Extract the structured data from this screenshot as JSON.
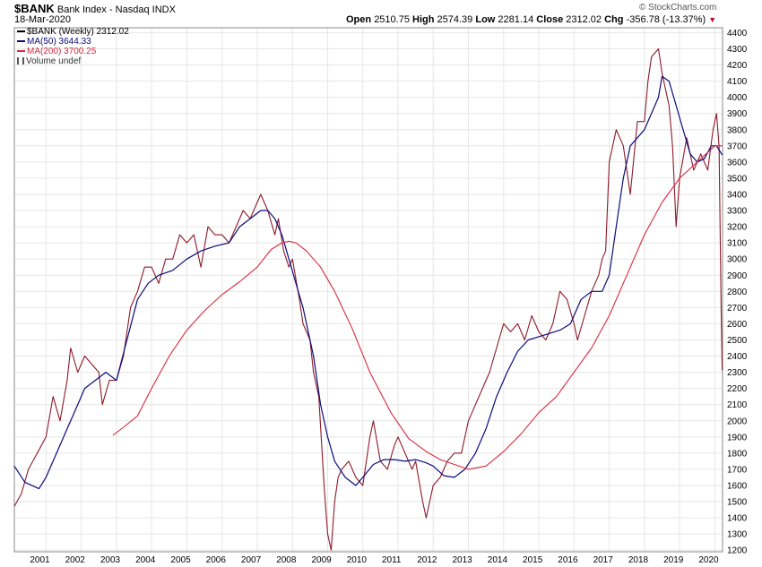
{
  "header": {
    "symbol": "$BANK",
    "name": "Bank Index - Nasdaq",
    "exchange": "INDX",
    "date": "18-Mar-2020",
    "brand": "© StockCharts.com",
    "open_label": "Open",
    "open": "2510.75",
    "high_label": "High",
    "high": "2574.39",
    "low_label": "Low",
    "low": "2281.14",
    "close_label": "Close",
    "close": "2312.02",
    "chg_label": "Chg",
    "chg": "-356.78 (-13.37%)",
    "chg_marker": "▼"
  },
  "legend": {
    "price": "$BANK (Weekly) 2312.02",
    "ma50": "MA(50) 3644.33",
    "ma200": "MA(200) 3700.25",
    "volume": "Volume undef"
  },
  "colors": {
    "price": "#8b1a2a",
    "ma50": "#0b0b7a",
    "ma200": "#d8283f",
    "grid": "#e6e6e6"
  },
  "chart_data": {
    "type": "line",
    "title": "$BANK Bank Index - Nasdaq INDX",
    "xlabel": "",
    "ylabel": "",
    "xlim": [
      2000.1,
      2020.22
    ],
    "ylim": [
      1190,
      4430
    ],
    "x_ticks": [
      2001,
      2002,
      2003,
      2004,
      2005,
      2006,
      2007,
      2008,
      2009,
      2010,
      2011,
      2012,
      2013,
      2014,
      2015,
      2016,
      2017,
      2018,
      2019,
      2020
    ],
    "x_tick_labels": [
      "2001",
      "2002",
      "2003",
      "2004",
      "2005",
      "2006",
      "2007",
      "2008",
      "2009",
      "2010",
      "2011",
      "2012",
      "2013",
      "2014",
      "2015",
      "2016",
      "2017",
      "2018",
      "2019",
      "2020"
    ],
    "y_ticks": [
      1200,
      1300,
      1400,
      1500,
      1600,
      1700,
      1800,
      1900,
      2000,
      2100,
      2200,
      2300,
      2400,
      2500,
      2600,
      2700,
      2800,
      2900,
      3000,
      3100,
      3200,
      3300,
      3400,
      3500,
      3600,
      3700,
      3800,
      3900,
      4000,
      4100,
      4200,
      4300,
      4400
    ],
    "grid": true,
    "legend_position": "top-left",
    "series": [
      {
        "name": "$BANK (Weekly)",
        "style": "price",
        "x": [
          2000.1,
          2000.3,
          2000.5,
          2000.8,
          2001.0,
          2001.2,
          2001.4,
          2001.6,
          2001.7,
          2001.9,
          2002.1,
          2002.3,
          2002.5,
          2002.6,
          2002.8,
          2003.0,
          2003.2,
          2003.4,
          2003.6,
          2003.8,
          2004.0,
          2004.2,
          2004.4,
          2004.6,
          2004.8,
          2005.0,
          2005.2,
          2005.4,
          2005.6,
          2005.8,
          2006.0,
          2006.2,
          2006.4,
          2006.6,
          2006.8,
          2007.0,
          2007.1,
          2007.3,
          2007.5,
          2007.6,
          2007.75,
          2007.9,
          2008.0,
          2008.2,
          2008.3,
          2008.5,
          2008.6,
          2008.75,
          2008.9,
          2009.0,
          2009.1,
          2009.2,
          2009.3,
          2009.4,
          2009.6,
          2009.8,
          2010.0,
          2010.2,
          2010.3,
          2010.5,
          2010.7,
          2010.9,
          2011.0,
          2011.2,
          2011.4,
          2011.5,
          2011.7,
          2011.8,
          2012.0,
          2012.2,
          2012.4,
          2012.6,
          2012.8,
          2013.0,
          2013.2,
          2013.4,
          2013.6,
          2013.8,
          2014.0,
          2014.2,
          2014.4,
          2014.6,
          2014.8,
          2015.0,
          2015.2,
          2015.4,
          2015.6,
          2015.8,
          2016.0,
          2016.1,
          2016.3,
          2016.5,
          2016.7,
          2016.8,
          2016.9,
          2017.0,
          2017.2,
          2017.4,
          2017.6,
          2017.8,
          2018.0,
          2018.1,
          2018.2,
          2018.4,
          2018.5,
          2018.7,
          2018.8,
          2018.9,
          2019.0,
          2019.2,
          2019.4,
          2019.6,
          2019.8,
          2019.95,
          2020.05,
          2020.12,
          2020.18,
          2020.21
        ],
        "y": [
          1470,
          1550,
          1700,
          1820,
          1900,
          2150,
          2000,
          2250,
          2450,
          2300,
          2400,
          2350,
          2300,
          2100,
          2250,
          2250,
          2400,
          2700,
          2800,
          2950,
          2950,
          2850,
          3000,
          3000,
          3150,
          3100,
          3150,
          2950,
          3200,
          3150,
          3150,
          3100,
          3200,
          3300,
          3250,
          3350,
          3400,
          3300,
          3150,
          3250,
          3050,
          2950,
          3000,
          2750,
          2600,
          2500,
          2300,
          2150,
          1600,
          1300,
          1200,
          1500,
          1650,
          1700,
          1750,
          1650,
          1600,
          1900,
          2000,
          1750,
          1700,
          1850,
          1900,
          1800,
          1700,
          1750,
          1500,
          1400,
          1600,
          1650,
          1750,
          1800,
          1800,
          2000,
          2100,
          2200,
          2300,
          2450,
          2600,
          2550,
          2600,
          2500,
          2650,
          2550,
          2500,
          2600,
          2800,
          2750,
          2600,
          2500,
          2650,
          2800,
          2900,
          3000,
          3050,
          3600,
          3800,
          3700,
          3400,
          3850,
          3850,
          4100,
          4250,
          4300,
          4150,
          3950,
          3700,
          3200,
          3500,
          3750,
          3550,
          3650,
          3550,
          3800,
          3900,
          3700,
          2700,
          2312
        ]
      },
      {
        "name": "MA(50)",
        "style": "ma50",
        "x": [
          2000.1,
          2000.4,
          2000.8,
          2001.0,
          2001.3,
          2001.6,
          2001.9,
          2002.1,
          2002.4,
          2002.7,
          2003.0,
          2003.3,
          2003.6,
          2003.9,
          2004.2,
          2004.6,
          2005.0,
          2005.4,
          2005.8,
          2006.2,
          2006.5,
          2006.8,
          2007.1,
          2007.3,
          2007.5,
          2007.7,
          2007.9,
          2008.1,
          2008.3,
          2008.6,
          2008.8,
          2009.0,
          2009.2,
          2009.5,
          2009.8,
          2010.0,
          2010.3,
          2010.6,
          2010.9,
          2011.2,
          2011.5,
          2011.8,
          2012.0,
          2012.3,
          2012.6,
          2012.9,
          2013.2,
          2013.5,
          2013.8,
          2014.1,
          2014.4,
          2014.7,
          2015.0,
          2015.3,
          2015.6,
          2015.9,
          2016.2,
          2016.5,
          2016.8,
          2017.0,
          2017.2,
          2017.4,
          2017.6,
          2017.8,
          2018.0,
          2018.2,
          2018.4,
          2018.5,
          2018.7,
          2018.9,
          2019.1,
          2019.3,
          2019.5,
          2019.7,
          2019.9,
          2020.05,
          2020.21
        ],
        "y": [
          1720,
          1620,
          1580,
          1650,
          1800,
          1950,
          2100,
          2200,
          2250,
          2300,
          2250,
          2500,
          2750,
          2850,
          2900,
          2930,
          3000,
          3050,
          3080,
          3100,
          3200,
          3250,
          3300,
          3300,
          3250,
          3150,
          3000,
          2850,
          2700,
          2400,
          2100,
          1900,
          1750,
          1650,
          1600,
          1650,
          1730,
          1760,
          1760,
          1750,
          1760,
          1740,
          1720,
          1660,
          1650,
          1700,
          1800,
          1950,
          2150,
          2300,
          2430,
          2500,
          2520,
          2540,
          2560,
          2600,
          2750,
          2800,
          2800,
          2900,
          3200,
          3500,
          3700,
          3750,
          3800,
          3900,
          4000,
          4130,
          4100,
          3950,
          3800,
          3650,
          3600,
          3620,
          3700,
          3700,
          3644
        ]
      },
      {
        "name": "MA(200)",
        "style": "ma200",
        "x": [
          2002.9,
          2003.2,
          2003.6,
          2004.0,
          2004.5,
          2005.0,
          2005.5,
          2006.0,
          2006.5,
          2007.0,
          2007.4,
          2007.7,
          2007.9,
          2008.1,
          2008.4,
          2008.8,
          2009.2,
          2009.7,
          2010.2,
          2010.8,
          2011.3,
          2011.8,
          2012.2,
          2012.6,
          2013.0,
          2013.5,
          2014.0,
          2014.5,
          2015.0,
          2015.5,
          2016.0,
          2016.5,
          2017.0,
          2017.5,
          2018.0,
          2018.5,
          2019.0,
          2019.5,
          2020.0,
          2020.21
        ],
        "y": [
          1910,
          1960,
          2030,
          2200,
          2400,
          2560,
          2680,
          2780,
          2860,
          2950,
          3060,
          3100,
          3110,
          3100,
          3050,
          2950,
          2800,
          2570,
          2300,
          2050,
          1890,
          1810,
          1760,
          1730,
          1700,
          1720,
          1810,
          1920,
          2050,
          2150,
          2300,
          2450,
          2650,
          2900,
          3150,
          3350,
          3500,
          3600,
          3700,
          3700
        ]
      }
    ]
  }
}
